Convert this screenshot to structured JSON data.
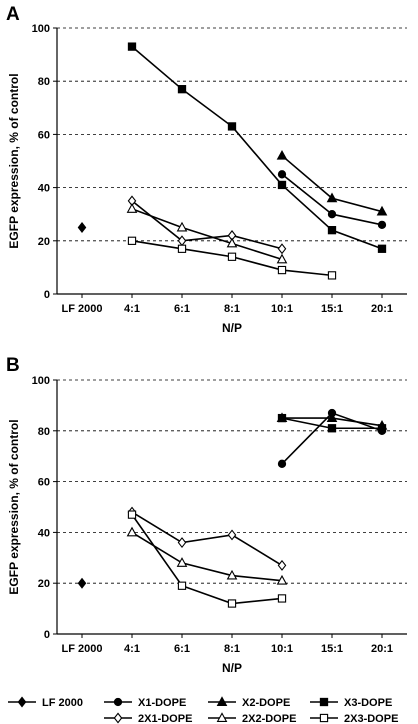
{
  "chart_data": [
    {
      "panel_label": "A",
      "type": "line",
      "xlabel": "N/P",
      "ylabel": "EGFP expression, % of control",
      "categories": [
        "LF 2000",
        "4:1",
        "6:1",
        "8:1",
        "10:1",
        "15:1",
        "20:1"
      ],
      "ylim": [
        0,
        100
      ],
      "yticks": [
        0,
        20,
        40,
        60,
        80,
        100
      ],
      "grid": "horizontal dashed",
      "series": [
        {
          "name": "LF 2000",
          "marker": "diamond",
          "filled": true,
          "points": [
            {
              "x": "LF 2000",
              "y": 25
            }
          ]
        },
        {
          "name": "X1-DOPE",
          "marker": "circle",
          "filled": true,
          "points": [
            {
              "x": "10:1",
              "y": 45
            },
            {
              "x": "15:1",
              "y": 30
            },
            {
              "x": "20:1",
              "y": 26
            }
          ]
        },
        {
          "name": "X2-DOPE",
          "marker": "triangle",
          "filled": true,
          "points": [
            {
              "x": "10:1",
              "y": 52
            },
            {
              "x": "15:1",
              "y": 36
            },
            {
              "x": "20:1",
              "y": 31
            }
          ]
        },
        {
          "name": "X3-DOPE",
          "marker": "square",
          "filled": true,
          "points": [
            {
              "x": "4:1",
              "y": 93
            },
            {
              "x": "6:1",
              "y": 77
            },
            {
              "x": "8:1",
              "y": 63
            },
            {
              "x": "10:1",
              "y": 41
            },
            {
              "x": "15:1",
              "y": 24
            },
            {
              "x": "20:1",
              "y": 17
            }
          ]
        },
        {
          "name": "2X1-DOPE",
          "marker": "diamond",
          "filled": false,
          "points": [
            {
              "x": "4:1",
              "y": 35
            },
            {
              "x": "6:1",
              "y": 20
            },
            {
              "x": "8:1",
              "y": 22
            },
            {
              "x": "10:1",
              "y": 17
            }
          ]
        },
        {
          "name": "2X2-DOPE",
          "marker": "triangle",
          "filled": false,
          "points": [
            {
              "x": "4:1",
              "y": 32
            },
            {
              "x": "6:1",
              "y": 25
            },
            {
              "x": "8:1",
              "y": 19
            },
            {
              "x": "10:1",
              "y": 13
            }
          ]
        },
        {
          "name": "2X3-DOPE",
          "marker": "square",
          "filled": false,
          "points": [
            {
              "x": "4:1",
              "y": 20
            },
            {
              "x": "6:1",
              "y": 17
            },
            {
              "x": "8:1",
              "y": 14
            },
            {
              "x": "10:1",
              "y": 9
            },
            {
              "x": "15:1",
              "y": 7
            }
          ]
        }
      ]
    },
    {
      "panel_label": "B",
      "type": "line",
      "xlabel": "N/P",
      "ylabel": "EGFP expression, % of control",
      "categories": [
        "LF 2000",
        "4:1",
        "6:1",
        "8:1",
        "10:1",
        "15:1",
        "20:1"
      ],
      "ylim": [
        0,
        100
      ],
      "yticks": [
        0,
        20,
        40,
        60,
        80,
        100
      ],
      "grid": "horizontal dashed",
      "series": [
        {
          "name": "LF 2000",
          "marker": "diamond",
          "filled": true,
          "points": [
            {
              "x": "LF 2000",
              "y": 20
            }
          ]
        },
        {
          "name": "X1-DOPE",
          "marker": "circle",
          "filled": true,
          "points": [
            {
              "x": "10:1",
              "y": 67
            },
            {
              "x": "15:1",
              "y": 87
            },
            {
              "x": "20:1",
              "y": 80
            }
          ]
        },
        {
          "name": "X2-DOPE",
          "marker": "triangle",
          "filled": true,
          "points": [
            {
              "x": "10:1",
              "y": 85
            },
            {
              "x": "15:1",
              "y": 85
            },
            {
              "x": "20:1",
              "y": 82
            }
          ]
        },
        {
          "name": "X3-DOPE",
          "marker": "square",
          "filled": true,
          "points": [
            {
              "x": "10:1",
              "y": 85
            },
            {
              "x": "15:1",
              "y": 81
            },
            {
              "x": "20:1",
              "y": 81
            }
          ]
        },
        {
          "name": "2X1-DOPE",
          "marker": "diamond",
          "filled": false,
          "points": [
            {
              "x": "4:1",
              "y": 48
            },
            {
              "x": "6:1",
              "y": 36
            },
            {
              "x": "8:1",
              "y": 39
            },
            {
              "x": "10:1",
              "y": 27
            }
          ]
        },
        {
          "name": "2X2-DOPE",
          "marker": "triangle",
          "filled": false,
          "points": [
            {
              "x": "4:1",
              "y": 40
            },
            {
              "x": "6:1",
              "y": 28
            },
            {
              "x": "8:1",
              "y": 23
            },
            {
              "x": "10:1",
              "y": 21
            }
          ]
        },
        {
          "name": "2X3-DOPE",
          "marker": "square",
          "filled": false,
          "points": [
            {
              "x": "4:1",
              "y": 47
            },
            {
              "x": "6:1",
              "y": 19
            },
            {
              "x": "8:1",
              "y": 12
            },
            {
              "x": "10:1",
              "y": 14
            }
          ]
        }
      ]
    }
  ],
  "legend": {
    "placement": "bottom",
    "items": [
      {
        "label": "LF 2000",
        "marker": "diamond",
        "filled": true
      },
      {
        "label": "X1-DOPE",
        "marker": "circle",
        "filled": true
      },
      {
        "label": "X2-DOPE",
        "marker": "triangle",
        "filled": true
      },
      {
        "label": "X3-DOPE",
        "marker": "square",
        "filled": true
      },
      {
        "label": "2X1-DOPE",
        "marker": "diamond",
        "filled": false
      },
      {
        "label": "2X2-DOPE",
        "marker": "triangle",
        "filled": false
      },
      {
        "label": "2X3-DOPE",
        "marker": "square",
        "filled": false
      }
    ]
  }
}
